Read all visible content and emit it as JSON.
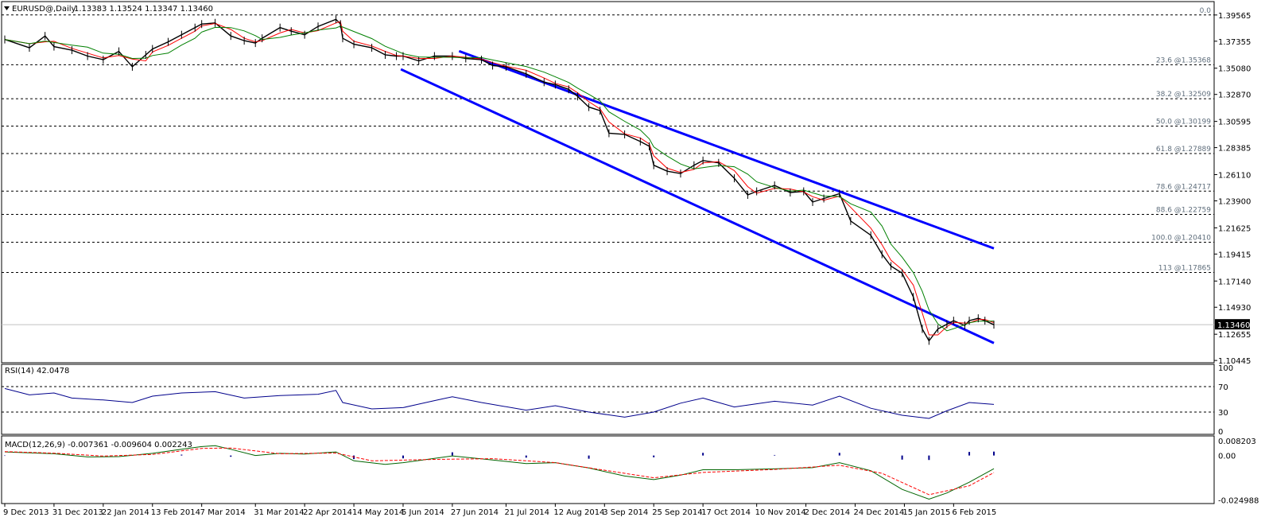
{
  "header": {
    "symbol_title": "EURUSD@,Daily",
    "ohlc": "1.13383 1.13524 1.13347 1.13460"
  },
  "colors": {
    "background": "#ffffff",
    "frame": "#000000",
    "grid": "#000000",
    "price_line": "#000000",
    "fib_text": "#5f6e7c",
    "channel": "#0000ff",
    "ma_fast": "#ff0000",
    "ma_slow": "#008000",
    "rsi": "#00008b",
    "macd_histogram": "#00008b",
    "macd_signal": "#ff0000",
    "macd_line": "#006400"
  },
  "chart_data": [
    {
      "type": "candlestick",
      "name": "EURUSD@,Daily",
      "ylim": [
        1.1032,
        1.4056
      ],
      "price_scale_labels": [
        "1.39565",
        "1.37355",
        "1.35080",
        "1.32870",
        "1.30595",
        "1.28385",
        "1.26110",
        "1.23900",
        "1.21625",
        "1.19415",
        "1.17140",
        "1.14930",
        "1.12655",
        "1.10445"
      ],
      "current_price_label": "1.13460",
      "current_price": 1.1346,
      "fibonacci_levels": [
        {
          "label": "0.0",
          "price": 1.3957
        },
        {
          "label": "23.6   @1.35368",
          "price": 1.35368
        },
        {
          "label": "38.2   @1.32509",
          "price": 1.32509
        },
        {
          "label": "50.0   @1.30199",
          "price": 1.30199
        },
        {
          "label": "61.8   @1.27889",
          "price": 1.27889
        },
        {
          "label": "78.6   @1.24717",
          "price": 1.24717
        },
        {
          "label": "88.6   @1.22759",
          "price": 1.22759
        },
        {
          "label": "100.0   @1.20410",
          "price": 1.2041
        },
        {
          "label": "113   @1.17865",
          "price": 1.17865
        }
      ],
      "channel_lines": [
        {
          "name": "upper",
          "start": {
            "date": "2014-06-30",
            "price": 1.3652
          },
          "end": {
            "date": "2015-02-24",
            "price": 1.1989
          }
        },
        {
          "name": "lower",
          "start": {
            "date": "2014-06-04",
            "price": 1.3499
          },
          "end": {
            "date": "2015-02-24",
            "price": 1.1191
          }
        }
      ],
      "close_path": [
        [
          "2013-12-09",
          1.375
        ],
        [
          "2013-12-20",
          1.368
        ],
        [
          "2013-12-27",
          1.378
        ],
        [
          "2013-12-31",
          1.369
        ],
        [
          "2014-01-08",
          1.366
        ],
        [
          "2014-01-15",
          1.361
        ],
        [
          "2014-01-22",
          1.358
        ],
        [
          "2014-01-29",
          1.365
        ],
        [
          "2014-02-04",
          1.352
        ],
        [
          "2014-02-10",
          1.362
        ],
        [
          "2014-02-13",
          1.367
        ],
        [
          "2014-02-20",
          1.373
        ],
        [
          "2014-02-26",
          1.379
        ],
        [
          "2014-03-04",
          1.385
        ],
        [
          "2014-03-07",
          1.388
        ],
        [
          "2014-03-13",
          1.389
        ],
        [
          "2014-03-20",
          1.378
        ],
        [
          "2014-03-26",
          1.374
        ],
        [
          "2014-03-31",
          1.372
        ],
        [
          "2014-04-03",
          1.376
        ],
        [
          "2014-04-11",
          1.385
        ],
        [
          "2014-04-16",
          1.382
        ],
        [
          "2014-04-22",
          1.379
        ],
        [
          "2014-04-28",
          1.386
        ],
        [
          "2014-05-06",
          1.392
        ],
        [
          "2014-05-08",
          1.388
        ],
        [
          "2014-05-09",
          1.376
        ],
        [
          "2014-05-14",
          1.371
        ],
        [
          "2014-05-22",
          1.368
        ],
        [
          "2014-05-28",
          1.362
        ],
        [
          "2014-06-02",
          1.361
        ],
        [
          "2014-06-05",
          1.361
        ],
        [
          "2014-06-12",
          1.357
        ],
        [
          "2014-06-19",
          1.361
        ],
        [
          "2014-06-27",
          1.361
        ],
        [
          "2014-07-03",
          1.359
        ],
        [
          "2014-07-10",
          1.358
        ],
        [
          "2014-07-15",
          1.353
        ],
        [
          "2014-07-21",
          1.352
        ],
        [
          "2014-07-30",
          1.346
        ],
        [
          "2014-08-07",
          1.339
        ],
        [
          "2014-08-12",
          1.337
        ],
        [
          "2014-08-18",
          1.333
        ],
        [
          "2014-08-22",
          1.327
        ],
        [
          "2014-08-27",
          1.318
        ],
        [
          "2014-09-01",
          1.315
        ],
        [
          "2014-09-05",
          1.296
        ],
        [
          "2014-09-12",
          1.295
        ],
        [
          "2014-09-19",
          1.289
        ],
        [
          "2014-09-23",
          1.285
        ],
        [
          "2014-09-25",
          1.269
        ],
        [
          "2014-10-01",
          1.264
        ],
        [
          "2014-10-07",
          1.262
        ],
        [
          "2014-10-13",
          1.269
        ],
        [
          "2014-10-17",
          1.273
        ],
        [
          "2014-10-24",
          1.271
        ],
        [
          "2014-10-31",
          1.258
        ],
        [
          "2014-11-06",
          1.244
        ],
        [
          "2014-11-10",
          1.247
        ],
        [
          "2014-11-18",
          1.252
        ],
        [
          "2014-11-25",
          1.246
        ],
        [
          "2014-12-01",
          1.247
        ],
        [
          "2014-12-05",
          1.238
        ],
        [
          "2014-12-10",
          1.241
        ],
        [
          "2014-12-17",
          1.245
        ],
        [
          "2014-12-22",
          1.222
        ],
        [
          "2014-12-31",
          1.21
        ],
        [
          "2015-01-05",
          1.194
        ],
        [
          "2015-01-09",
          1.184
        ],
        [
          "2015-01-14",
          1.178
        ],
        [
          "2015-01-19",
          1.158
        ],
        [
          "2015-01-23",
          1.131
        ],
        [
          "2015-01-26",
          1.121
        ],
        [
          "2015-01-30",
          1.131
        ],
        [
          "2015-02-03",
          1.135
        ],
        [
          "2015-02-06",
          1.138
        ],
        [
          "2015-02-11",
          1.134
        ],
        [
          "2015-02-13",
          1.138
        ],
        [
          "2015-02-17",
          1.14
        ],
        [
          "2015-02-20",
          1.138
        ],
        [
          "2015-02-24",
          1.1346
        ]
      ]
    },
    {
      "type": "line",
      "name": "RSI(14) 42.0478",
      "ylim": [
        0,
        100
      ],
      "scale_labels": [
        "100",
        "70",
        "30",
        "0"
      ],
      "levels": [
        70,
        30
      ],
      "points": [
        [
          "2013-12-09",
          67
        ],
        [
          "2013-12-20",
          57
        ],
        [
          "2013-12-31",
          60
        ],
        [
          "2014-01-08",
          52
        ],
        [
          "2014-01-22",
          49
        ],
        [
          "2014-02-04",
          45
        ],
        [
          "2014-02-13",
          55
        ],
        [
          "2014-02-26",
          60
        ],
        [
          "2014-03-13",
          62
        ],
        [
          "2014-03-26",
          52
        ],
        [
          "2014-04-11",
          56
        ],
        [
          "2014-04-28",
          58
        ],
        [
          "2014-05-06",
          64
        ],
        [
          "2014-05-09",
          45
        ],
        [
          "2014-05-22",
          35
        ],
        [
          "2014-06-05",
          37
        ],
        [
          "2014-06-19",
          48
        ],
        [
          "2014-06-27",
          54
        ],
        [
          "2014-07-10",
          45
        ],
        [
          "2014-07-30",
          33
        ],
        [
          "2014-08-12",
          40
        ],
        [
          "2014-08-27",
          30
        ],
        [
          "2014-09-12",
          22
        ],
        [
          "2014-09-25",
          30
        ],
        [
          "2014-10-07",
          44
        ],
        [
          "2014-10-17",
          52
        ],
        [
          "2014-10-31",
          38
        ],
        [
          "2014-11-18",
          47
        ],
        [
          "2014-12-05",
          41
        ],
        [
          "2014-12-17",
          55
        ],
        [
          "2014-12-31",
          36
        ],
        [
          "2015-01-14",
          25
        ],
        [
          "2015-01-26",
          20
        ],
        [
          "2015-02-03",
          32
        ],
        [
          "2015-02-13",
          45
        ],
        [
          "2015-02-24",
          42.0478
        ]
      ]
    },
    {
      "type": "line",
      "name": "MACD(12,26,9) -0.007361 -0.009604 0.002243",
      "ylim": [
        -0.0265,
        0.0092
      ],
      "scale_labels": [
        "0.008203",
        "0.00",
        "-0.024988"
      ],
      "series": [
        {
          "name": "MACD",
          "points": [
            [
              "2013-12-09",
              0.002
            ],
            [
              "2013-12-20",
              0.0015
            ],
            [
              "2013-12-31",
              0.001
            ],
            [
              "2014-01-15",
              -0.0008
            ],
            [
              "2014-01-29",
              -0.0006
            ],
            [
              "2014-02-13",
              0.0012
            ],
            [
              "2014-02-26",
              0.0035
            ],
            [
              "2014-03-07",
              0.005
            ],
            [
              "2014-03-13",
              0.0055
            ],
            [
              "2014-03-20",
              0.0035
            ],
            [
              "2014-03-31",
              0.0
            ],
            [
              "2014-04-11",
              0.0012
            ],
            [
              "2014-04-22",
              0.0008
            ],
            [
              "2014-05-06",
              0.002
            ],
            [
              "2014-05-14",
              -0.003
            ],
            [
              "2014-05-28",
              -0.005
            ],
            [
              "2014-06-05",
              -0.004
            ],
            [
              "2014-06-27",
              -0.0002
            ],
            [
              "2014-07-15",
              -0.0025
            ],
            [
              "2014-07-30",
              -0.0045
            ],
            [
              "2014-08-12",
              -0.004
            ],
            [
              "2014-08-27",
              -0.007
            ],
            [
              "2014-09-12",
              -0.0115
            ],
            [
              "2014-09-25",
              -0.0135
            ],
            [
              "2014-10-07",
              -0.011
            ],
            [
              "2014-10-17",
              -0.008
            ],
            [
              "2014-10-31",
              -0.008
            ],
            [
              "2014-11-18",
              -0.0075
            ],
            [
              "2014-12-05",
              -0.0068
            ],
            [
              "2014-12-17",
              -0.004
            ],
            [
              "2014-12-31",
              -0.0085
            ],
            [
              "2015-01-14",
              -0.019
            ],
            [
              "2015-01-26",
              -0.0245
            ],
            [
              "2015-02-03",
              -0.021
            ],
            [
              "2015-02-13",
              -0.015
            ],
            [
              "2015-02-24",
              -0.0074
            ]
          ]
        },
        {
          "name": "Signal",
          "points": [
            [
              "2013-12-09",
              0.0022
            ],
            [
              "2013-12-31",
              0.0013
            ],
            [
              "2014-01-22",
              -0.0003
            ],
            [
              "2014-02-13",
              0.0006
            ],
            [
              "2014-03-07",
              0.004
            ],
            [
              "2014-03-20",
              0.0042
            ],
            [
              "2014-04-11",
              0.001
            ],
            [
              "2014-05-06",
              0.0014
            ],
            [
              "2014-05-22",
              -0.003
            ],
            [
              "2014-06-19",
              -0.0022
            ],
            [
              "2014-07-15",
              -0.0018
            ],
            [
              "2014-08-12",
              -0.004
            ],
            [
              "2014-09-12",
              -0.01
            ],
            [
              "2014-09-25",
              -0.0125
            ],
            [
              "2014-10-17",
              -0.0095
            ],
            [
              "2014-11-18",
              -0.0078
            ],
            [
              "2014-12-17",
              -0.0055
            ],
            [
              "2015-01-05",
              -0.01
            ],
            [
              "2015-01-26",
              -0.022
            ],
            [
              "2015-02-13",
              -0.017
            ],
            [
              "2015-02-24",
              -0.0096
            ]
          ]
        },
        {
          "name": "Histogram",
          "points": [
            [
              "2013-12-09",
              -0.0002
            ],
            [
              "2014-01-08",
              0.0003
            ],
            [
              "2014-02-26",
              0.0005
            ],
            [
              "2014-03-20",
              -0.0007
            ],
            [
              "2014-05-14",
              -0.002
            ],
            [
              "2014-06-05",
              -0.0016
            ],
            [
              "2014-06-27",
              0.0018
            ],
            [
              "2014-07-30",
              -0.0012
            ],
            [
              "2014-08-27",
              -0.0018
            ],
            [
              "2014-09-25",
              -0.001
            ],
            [
              "2014-10-17",
              0.0015
            ],
            [
              "2014-11-18",
              0.0003
            ],
            [
              "2014-12-17",
              0.0015
            ],
            [
              "2015-01-14",
              -0.0023
            ],
            [
              "2015-01-26",
              -0.0025
            ],
            [
              "2015-02-13",
              0.002
            ],
            [
              "2015-02-24",
              0.0022
            ]
          ]
        }
      ]
    }
  ],
  "time_axis_labels": [
    {
      "label": "9 Dec 2013",
      "date": "2013-12-09"
    },
    {
      "label": "31 Dec 2013",
      "date": "2013-12-31"
    },
    {
      "label": "22 Jan 2014",
      "date": "2014-01-22"
    },
    {
      "label": "13 Feb 2014",
      "date": "2014-02-13"
    },
    {
      "label": "7 Mar 2014",
      "date": "2014-03-07"
    },
    {
      "label": "31 Mar 2014",
      "date": "2014-03-31"
    },
    {
      "label": "22 Apr 2014",
      "date": "2014-04-22"
    },
    {
      "label": "14 May 2014",
      "date": "2014-05-14"
    },
    {
      "label": "5 Jun 2014",
      "date": "2014-06-05"
    },
    {
      "label": "27 Jun 2014",
      "date": "2014-06-27"
    },
    {
      "label": "21 Jul 2014",
      "date": "2014-07-21"
    },
    {
      "label": "12 Aug 2014",
      "date": "2014-08-12"
    },
    {
      "label": "3 Sep 2014",
      "date": "2014-09-03"
    },
    {
      "label": "25 Sep 2014",
      "date": "2014-09-25"
    },
    {
      "label": "17 Oct 2014",
      "date": "2014-10-17"
    },
    {
      "label": "10 Nov 2014",
      "date": "2014-11-10"
    },
    {
      "label": "2 Dec 2014",
      "date": "2014-12-02"
    },
    {
      "label": "24 Dec 2014",
      "date": "2014-12-24"
    },
    {
      "label": "15 Jan 2015",
      "date": "2015-01-15"
    },
    {
      "label": "6 Feb 2015",
      "date": "2015-02-06"
    }
  ]
}
